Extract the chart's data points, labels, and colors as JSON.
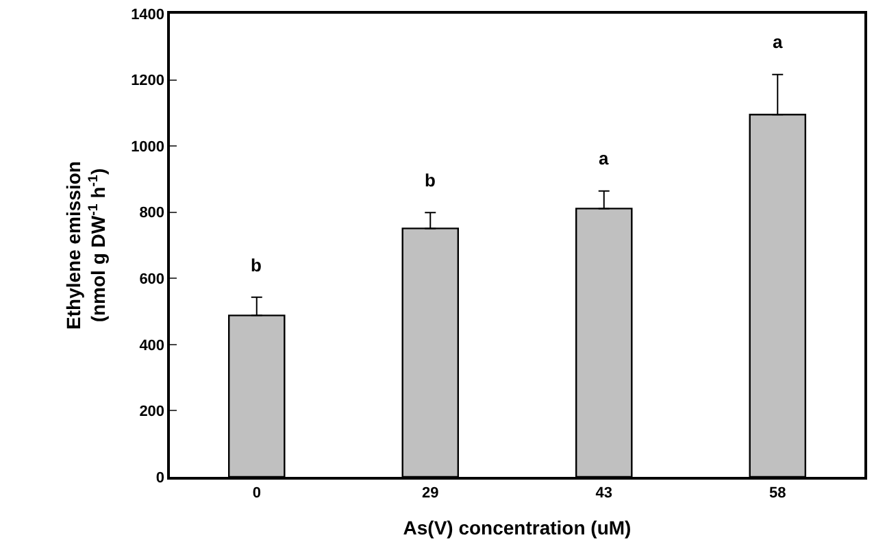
{
  "chart_data": {
    "type": "bar",
    "xlabel": "As(V) concentration (uM)",
    "ylabel": "Ethylene emission\n(nmol g DW$^{-1}$ h$^{-1}$)",
    "categories": [
      "0",
      "29",
      "43",
      "58"
    ],
    "values": [
      488,
      751,
      811,
      1095
    ],
    "errors": [
      [
        488,
        543
      ],
      [
        751,
        799
      ],
      [
        811,
        864
      ],
      [
        1095,
        1216
      ]
    ],
    "color": "#c0c0c0",
    "ylim": [
      0,
      1400
    ],
    "yticks": [
      0,
      200,
      400,
      600,
      800,
      1000,
      1200,
      1400
    ],
    "annotations": [
      "b",
      "b",
      "a",
      "a"
    ]
  }
}
